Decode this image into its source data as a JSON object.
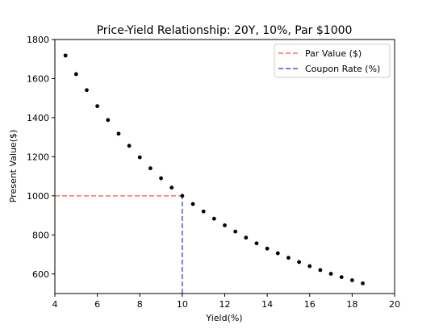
{
  "chart_data": {
    "type": "scatter",
    "title": "Price-Yield Relationship: 20Y, 10%, Par $1000",
    "xlabel": "Yield(%)",
    "ylabel": "Present Value($)",
    "xlim": [
      4,
      20
    ],
    "ylim": [
      500,
      1800
    ],
    "xticks": [
      4,
      6,
      8,
      10,
      12,
      14,
      16,
      18,
      20
    ],
    "yticks": [
      600,
      800,
      1000,
      1200,
      1400,
      1600,
      1800
    ],
    "grid": false,
    "legend_position": "top-right",
    "series": [
      {
        "x": [
          4.5,
          5.0,
          5.5,
          6.0,
          6.5,
          7.0,
          7.5,
          8.0,
          8.5,
          9.0,
          9.5,
          10.0,
          10.5,
          11.0,
          11.5,
          12.0,
          12.5,
          13.0,
          13.5,
          14.0,
          14.5,
          15.0,
          15.5,
          16.0,
          16.5,
          17.0,
          17.5,
          18.0,
          18.5
        ],
        "y": [
          1718,
          1623,
          1541,
          1459,
          1388,
          1318,
          1256,
          1197,
          1141,
          1090,
          1042,
          1000,
          958,
          920,
          883,
          849,
          817,
          786,
          757,
          730,
          706,
          683,
          661,
          640,
          620,
          601,
          584,
          568,
          552
        ],
        "color": "#000000",
        "marker": "dot"
      }
    ],
    "reference_lines": [
      {
        "name": "Par Value ($)",
        "orientation": "horizontal",
        "value": 1000,
        "from": 4,
        "to": 10,
        "color": "#ff6b6b",
        "style": "dashed"
      },
      {
        "name": "Coupon Rate (%)",
        "orientation": "vertical",
        "value": 10,
        "from": 500,
        "to": 1000,
        "color": "#5555d9",
        "style": "dashed"
      }
    ]
  }
}
